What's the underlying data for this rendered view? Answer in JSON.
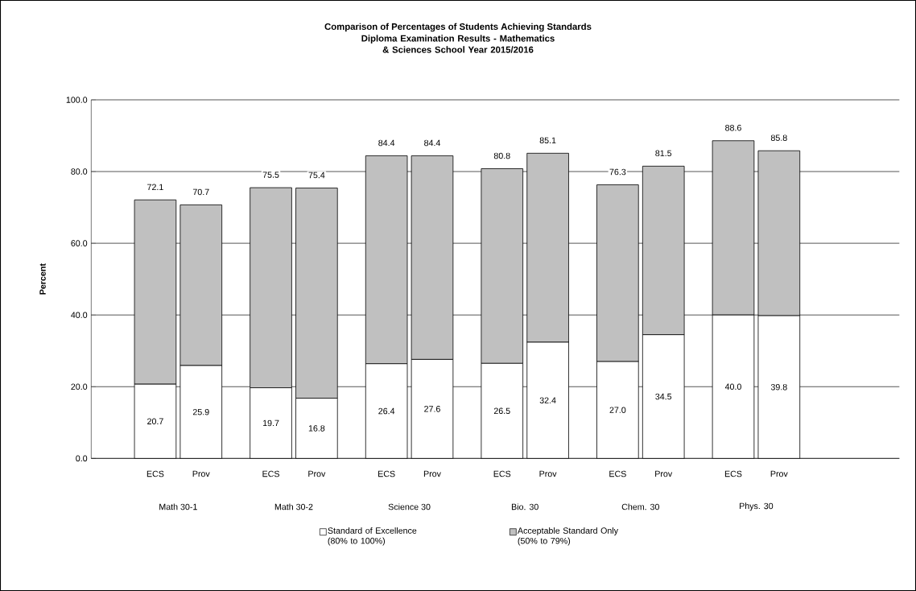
{
  "chart_data": {
    "type": "bar",
    "stacked": true,
    "title": "Comparison of Percentages of Students Achieving Standards",
    "subtitle": "Diploma Examination Results - Mathematics & Sciences School Year 2015/2016",
    "ylabel": "Percent",
    "categories": [
      "ECS",
      "Prov",
      "ECS",
      "Prov",
      "ECS",
      "Prov",
      "ECS",
      "Prov",
      "ECS",
      "Prov",
      "ECS",
      "Prov"
    ],
    "annotations": [
      "Math 30-1",
      "Math 30-2",
      "Science 30",
      "Bio. 30",
      "Chem. 30",
      "Phys. 30"
    ],
    "series": [
      {
        "name": "Standard of Excellence (80% to 100%)",
        "color": "#ffffff",
        "values": [
          20.7,
          25.9,
          19.7,
          16.8,
          26.4,
          27.6,
          26.5,
          32.4,
          27.0,
          34.5,
          40.0,
          39.8
        ],
        "value_labels": [
          "20.7",
          "25.9",
          "19.7",
          "16.8",
          "26.4",
          "27.6",
          "26.5",
          "32.4",
          "27.0",
          "34.5",
          "40.0",
          "39.8"
        ]
      },
      {
        "name": "Acceptable Standard Only (50% to 79%)",
        "color": "#c0c0c0",
        "values": [
          51.4,
          44.8,
          55.8,
          58.6,
          58.0,
          56.8,
          54.3,
          52.7,
          49.3,
          47.0,
          48.6,
          46.0
        ]
      }
    ],
    "totals": [
      "72.1",
      "70.7",
      "75.5",
      "75.4",
      "84.4",
      "84.4",
      "80.8",
      "85.1",
      "76.3",
      "81.5",
      "88.6",
      "85.8"
    ],
    "ylim": [
      0,
      100
    ],
    "yticks": [
      {
        "value": 0,
        "label": "0.0"
      },
      {
        "value": 20,
        "label": "20.0"
      },
      {
        "value": 40,
        "label": "40.0"
      },
      {
        "value": 60,
        "label": "60.0"
      },
      {
        "value": 80,
        "label": "80.0"
      },
      {
        "value": 100,
        "label": "100.0"
      }
    ],
    "grid": "y",
    "legend": "bottom"
  }
}
